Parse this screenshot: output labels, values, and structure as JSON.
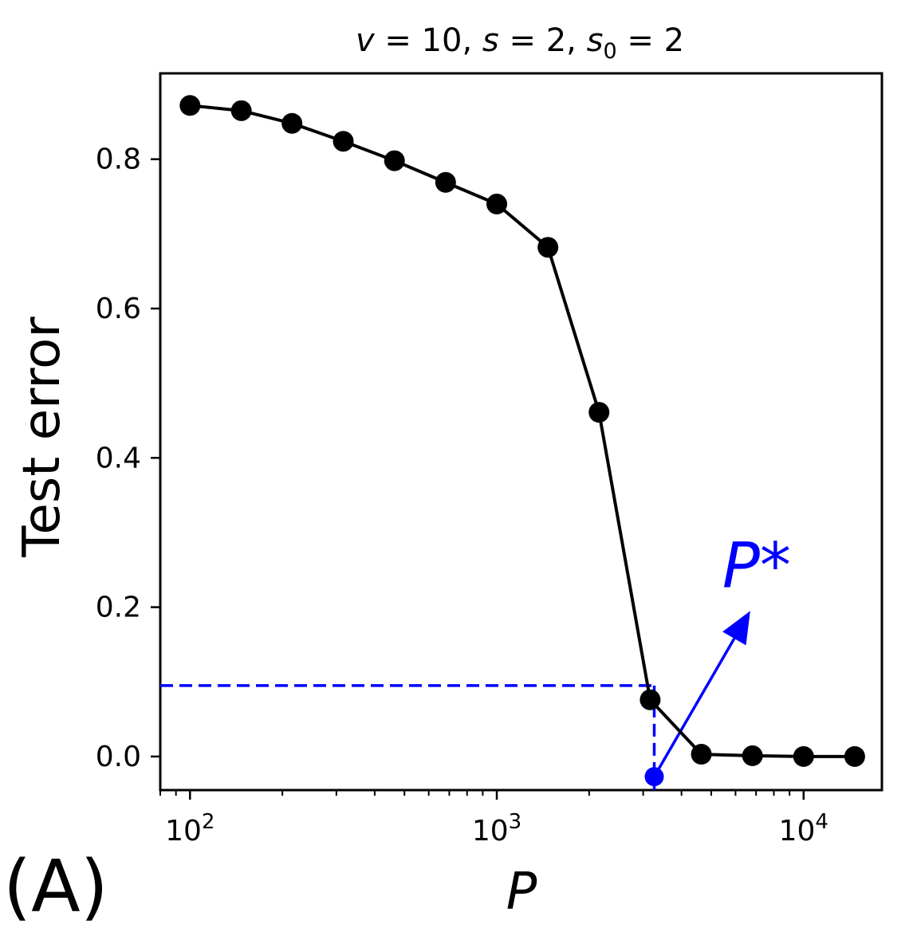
{
  "panel_label": "(A)",
  "colors": {
    "series": "#000000",
    "annotation": "#0000ff",
    "axes": "#000000",
    "background": "#ffffff"
  },
  "chart_data": {
    "type": "line",
    "title": {
      "v_sym": "v",
      "v_val": "10",
      "s_sym": "s",
      "s_val": "2",
      "s0_sym": "s",
      "s0_sub": "0",
      "s0_val": "2"
    },
    "xlabel": "P",
    "ylabel": "Test error",
    "xscale": "log",
    "xlim": [
      80,
      18000
    ],
    "ylim": [
      -0.045,
      0.915
    ],
    "xticks": [
      {
        "value": 100,
        "base": "10",
        "exp": "2"
      },
      {
        "value": 1000,
        "base": "10",
        "exp": "3"
      },
      {
        "value": 10000,
        "base": "10",
        "exp": "4"
      }
    ],
    "yticks": [
      {
        "value": 0.0,
        "label": "0.0"
      },
      {
        "value": 0.2,
        "label": "0.2"
      },
      {
        "value": 0.4,
        "label": "0.4"
      },
      {
        "value": 0.6,
        "label": "0.6"
      },
      {
        "value": 0.8,
        "label": "0.8"
      }
    ],
    "grid": false,
    "legend": "none",
    "series": [
      {
        "x": [
          100,
          147,
          215,
          316,
          464,
          681,
          1000,
          1468,
          2154,
          3162,
          4642,
          6813,
          10000,
          14678
        ],
        "y": [
          0.872,
          0.865,
          0.848,
          0.824,
          0.798,
          0.769,
          0.74,
          0.682,
          0.461,
          0.076,
          0.003,
          0.001,
          0.0,
          0.0
        ]
      }
    ],
    "annotation": {
      "label": "P*",
      "threshold_y": 0.095,
      "p_star_x": 3260,
      "marker_y": -0.027,
      "arrow_to": [
        6700,
        0.195
      ]
    }
  }
}
